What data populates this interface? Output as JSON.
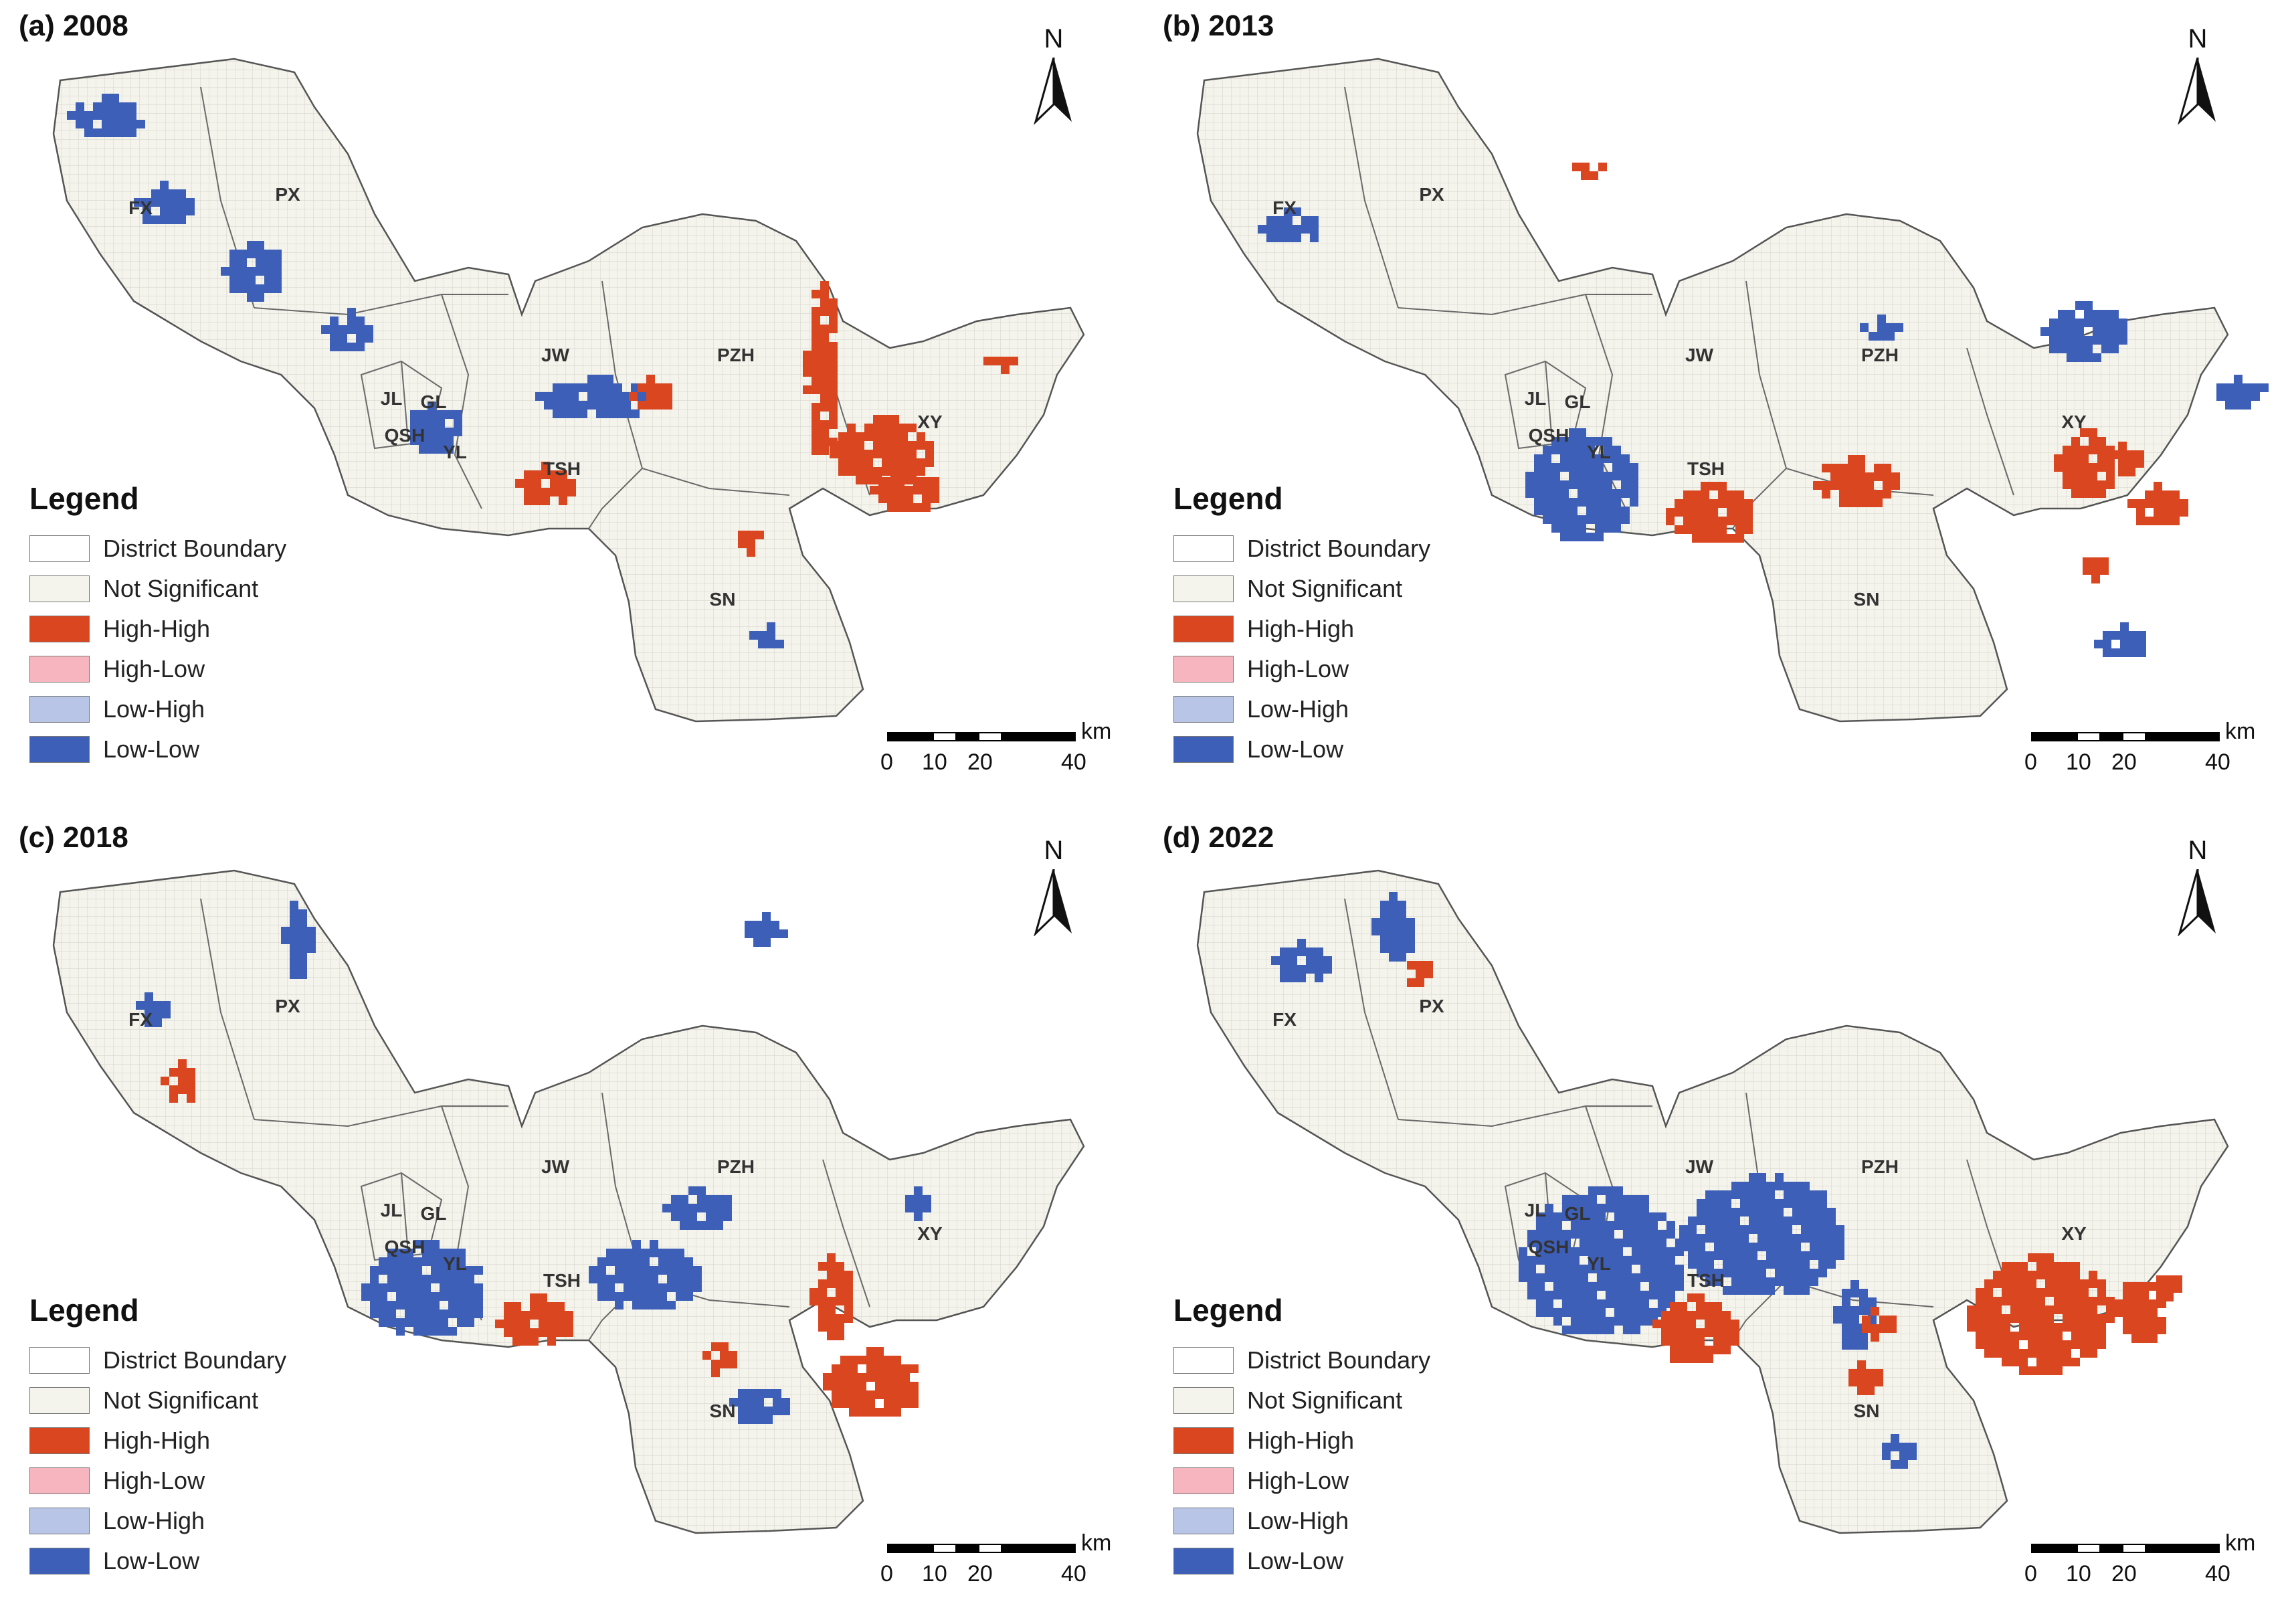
{
  "panels": [
    {
      "title": "(a) 2008"
    },
    {
      "title": "(b) 2013"
    },
    {
      "title": "(c) 2018"
    },
    {
      "title": "(d) 2022"
    }
  ],
  "north_label": "N",
  "legend": {
    "title": "Legend",
    "items": [
      {
        "label": "District Boundary",
        "color": "#ffffff"
      },
      {
        "label": "Not Significant",
        "color": "#f4f4ec"
      },
      {
        "label": "High-High",
        "color": "#d9461f"
      },
      {
        "label": "High-Low",
        "color": "#f7b5bf"
      },
      {
        "label": "Low-High",
        "color": "#b8c5e6"
      },
      {
        "label": "Low-Low",
        "color": "#3d5fb8"
      }
    ]
  },
  "scale": {
    "unit": "km",
    "ticks": [
      "0",
      "10",
      "20",
      "40"
    ]
  },
  "district_codes": [
    "FX",
    "PX",
    "JW",
    "PZH",
    "XY",
    "JL",
    "GL",
    "QSH",
    "YL",
    "TSH",
    "SN"
  ]
}
